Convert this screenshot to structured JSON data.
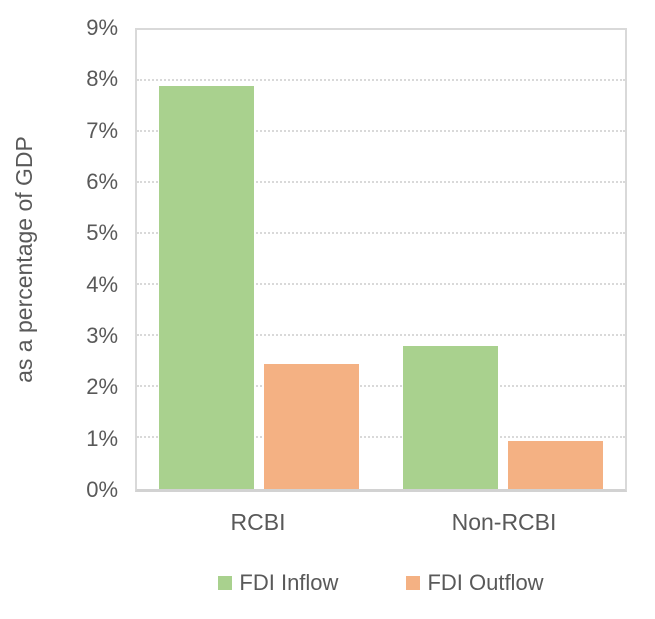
{
  "chart_data": {
    "type": "bar",
    "title": "",
    "categories": [
      "RCBI",
      "Non-RCBI"
    ],
    "series": [
      {
        "name": "FDI Inflow",
        "color": "#A9D18E",
        "values": [
          7.9,
          2.8
        ]
      },
      {
        "name": "FDI Outflow",
        "color": "#F4B183",
        "values": [
          2.45,
          0.95
        ]
      }
    ],
    "xlabel": "",
    "ylabel": "as a percentage of GDP",
    "ylim": [
      0,
      9
    ],
    "ytick_labels": [
      "0%",
      "1%",
      "2%",
      "3%",
      "4%",
      "5%",
      "6%",
      "7%",
      "8%",
      "9%"
    ],
    "grid": "horizontal-dotted",
    "legend_position": "bottom",
    "colors": {
      "axis_text": "#595959",
      "gridline": "#D9D9D9",
      "plot_border": "#D9D9D9",
      "background": "#FFFFFF"
    }
  }
}
